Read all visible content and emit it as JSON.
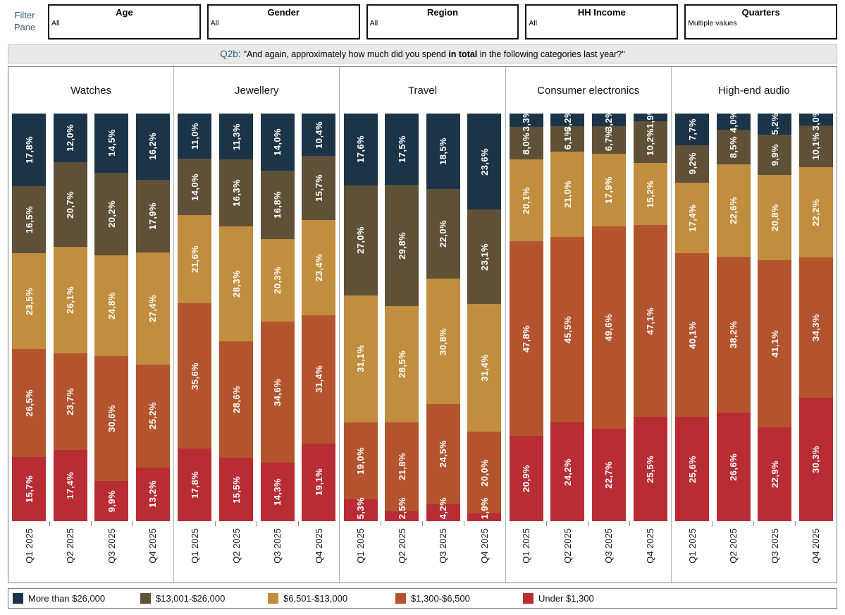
{
  "filter_pane": {
    "label": "Filter Pane",
    "filters": [
      {
        "name": "Age",
        "value": "All"
      },
      {
        "name": "Gender",
        "value": "All"
      },
      {
        "name": "Region",
        "value": "All"
      },
      {
        "name": "HH Income",
        "value": "All"
      },
      {
        "name": "Quarters",
        "value": "Multiple values"
      }
    ]
  },
  "title": {
    "q_code": "Q2b:",
    "pre": "\"And again, approximately how much did you spend ",
    "bold": "in total",
    "post": " in the following categories last year?\""
  },
  "legend": [
    {
      "label": "More than $26,000",
      "color": "#1c3447"
    },
    {
      "label": "$13,001-$26,000",
      "color": "#5e5138"
    },
    {
      "label": "$6,501-$13,000",
      "color": "#c18d3e"
    },
    {
      "label": "$1,300-$6,500",
      "color": "#b3542f"
    },
    {
      "label": "Under $1,300",
      "color": "#b82c34"
    }
  ],
  "chart_data": {
    "type": "bar",
    "stacked": true,
    "value_unit": "percent",
    "decimal_separator": ",",
    "ylim": [
      0,
      100
    ],
    "grid": false,
    "legend_position": "bottom",
    "quarters": [
      "Q1 2025",
      "Q2 2025",
      "Q3 2025",
      "Q4 2025"
    ],
    "series_top_to_bottom": [
      "More than $26,000",
      "$13,001-$26,000",
      "$6,501-$13,000",
      "$1,300-$6,500",
      "Under $1,300"
    ],
    "series_colors": [
      "#1c3447",
      "#5e5138",
      "#c18d3e",
      "#b3542f",
      "#b82c34"
    ],
    "groups": [
      {
        "label": "Watches",
        "series": [
          {
            "name": "More than $26,000",
            "values": [
              17.8,
              12.0,
              14.5,
              16.2
            ]
          },
          {
            "name": "$13,001-$26,000",
            "values": [
              16.5,
              20.7,
              20.2,
              17.9
            ]
          },
          {
            "name": "$6,501-$13,000",
            "values": [
              23.5,
              26.1,
              24.8,
              27.4
            ]
          },
          {
            "name": "$1,300-$6,500",
            "values": [
              26.5,
              23.7,
              30.6,
              25.2
            ]
          },
          {
            "name": "Under $1,300",
            "values": [
              15.7,
              17.4,
              9.9,
              13.2
            ]
          }
        ]
      },
      {
        "label": "Jewellery",
        "series": [
          {
            "name": "More than $26,000",
            "values": [
              11.0,
              11.3,
              14.0,
              10.4
            ]
          },
          {
            "name": "$13,001-$26,000",
            "values": [
              14.0,
              16.3,
              16.8,
              15.7
            ]
          },
          {
            "name": "$6,501-$13,000",
            "values": [
              21.6,
              28.3,
              20.3,
              23.4
            ]
          },
          {
            "name": "$1,300-$6,500",
            "values": [
              35.6,
              28.6,
              34.6,
              31.4
            ]
          },
          {
            "name": "Under $1,300",
            "values": [
              17.8,
              15.5,
              14.3,
              19.1
            ]
          }
        ]
      },
      {
        "label": "Travel",
        "series": [
          {
            "name": "More than $26,000",
            "values": [
              17.6,
              17.5,
              18.5,
              23.6
            ]
          },
          {
            "name": "$13,001-$26,000",
            "values": [
              27.0,
              29.8,
              22.0,
              23.1
            ]
          },
          {
            "name": "$6,501-$13,000",
            "values": [
              31.1,
              28.5,
              30.8,
              31.4
            ]
          },
          {
            "name": "$1,300-$6,500",
            "values": [
              19.0,
              21.8,
              24.5,
              20.0
            ]
          },
          {
            "name": "Under $1,300",
            "values": [
              5.3,
              2.5,
              4.2,
              1.9
            ]
          }
        ]
      },
      {
        "label": "Consumer electronics",
        "series": [
          {
            "name": "More than $26,000",
            "values": [
              3.3,
              3.2,
              3.2,
              1.9
            ]
          },
          {
            "name": "$13,001-$26,000",
            "values": [
              8.0,
              6.1,
              6.7,
              10.2
            ]
          },
          {
            "name": "$6,501-$13,000",
            "values": [
              20.1,
              21.0,
              17.9,
              15.2
            ]
          },
          {
            "name": "$1,300-$6,500",
            "values": [
              47.8,
              45.5,
              49.6,
              47.1
            ]
          },
          {
            "name": "Under $1,300",
            "values": [
              20.9,
              24.2,
              22.7,
              25.5
            ]
          }
        ]
      },
      {
        "label": "High-end audio",
        "series": [
          {
            "name": "More than $26,000",
            "values": [
              7.7,
              4.0,
              5.2,
              3.0
            ]
          },
          {
            "name": "$13,001-$26,000",
            "values": [
              9.2,
              8.5,
              9.9,
              10.1
            ]
          },
          {
            "name": "$6,501-$13,000",
            "values": [
              17.4,
              22.6,
              20.8,
              22.2
            ]
          },
          {
            "name": "$1,300-$6,500",
            "values": [
              40.1,
              38.2,
              41.1,
              34.3
            ]
          },
          {
            "name": "Under $1,300",
            "values": [
              25.6,
              26.6,
              22.9,
              30.3
            ]
          }
        ]
      }
    ]
  }
}
